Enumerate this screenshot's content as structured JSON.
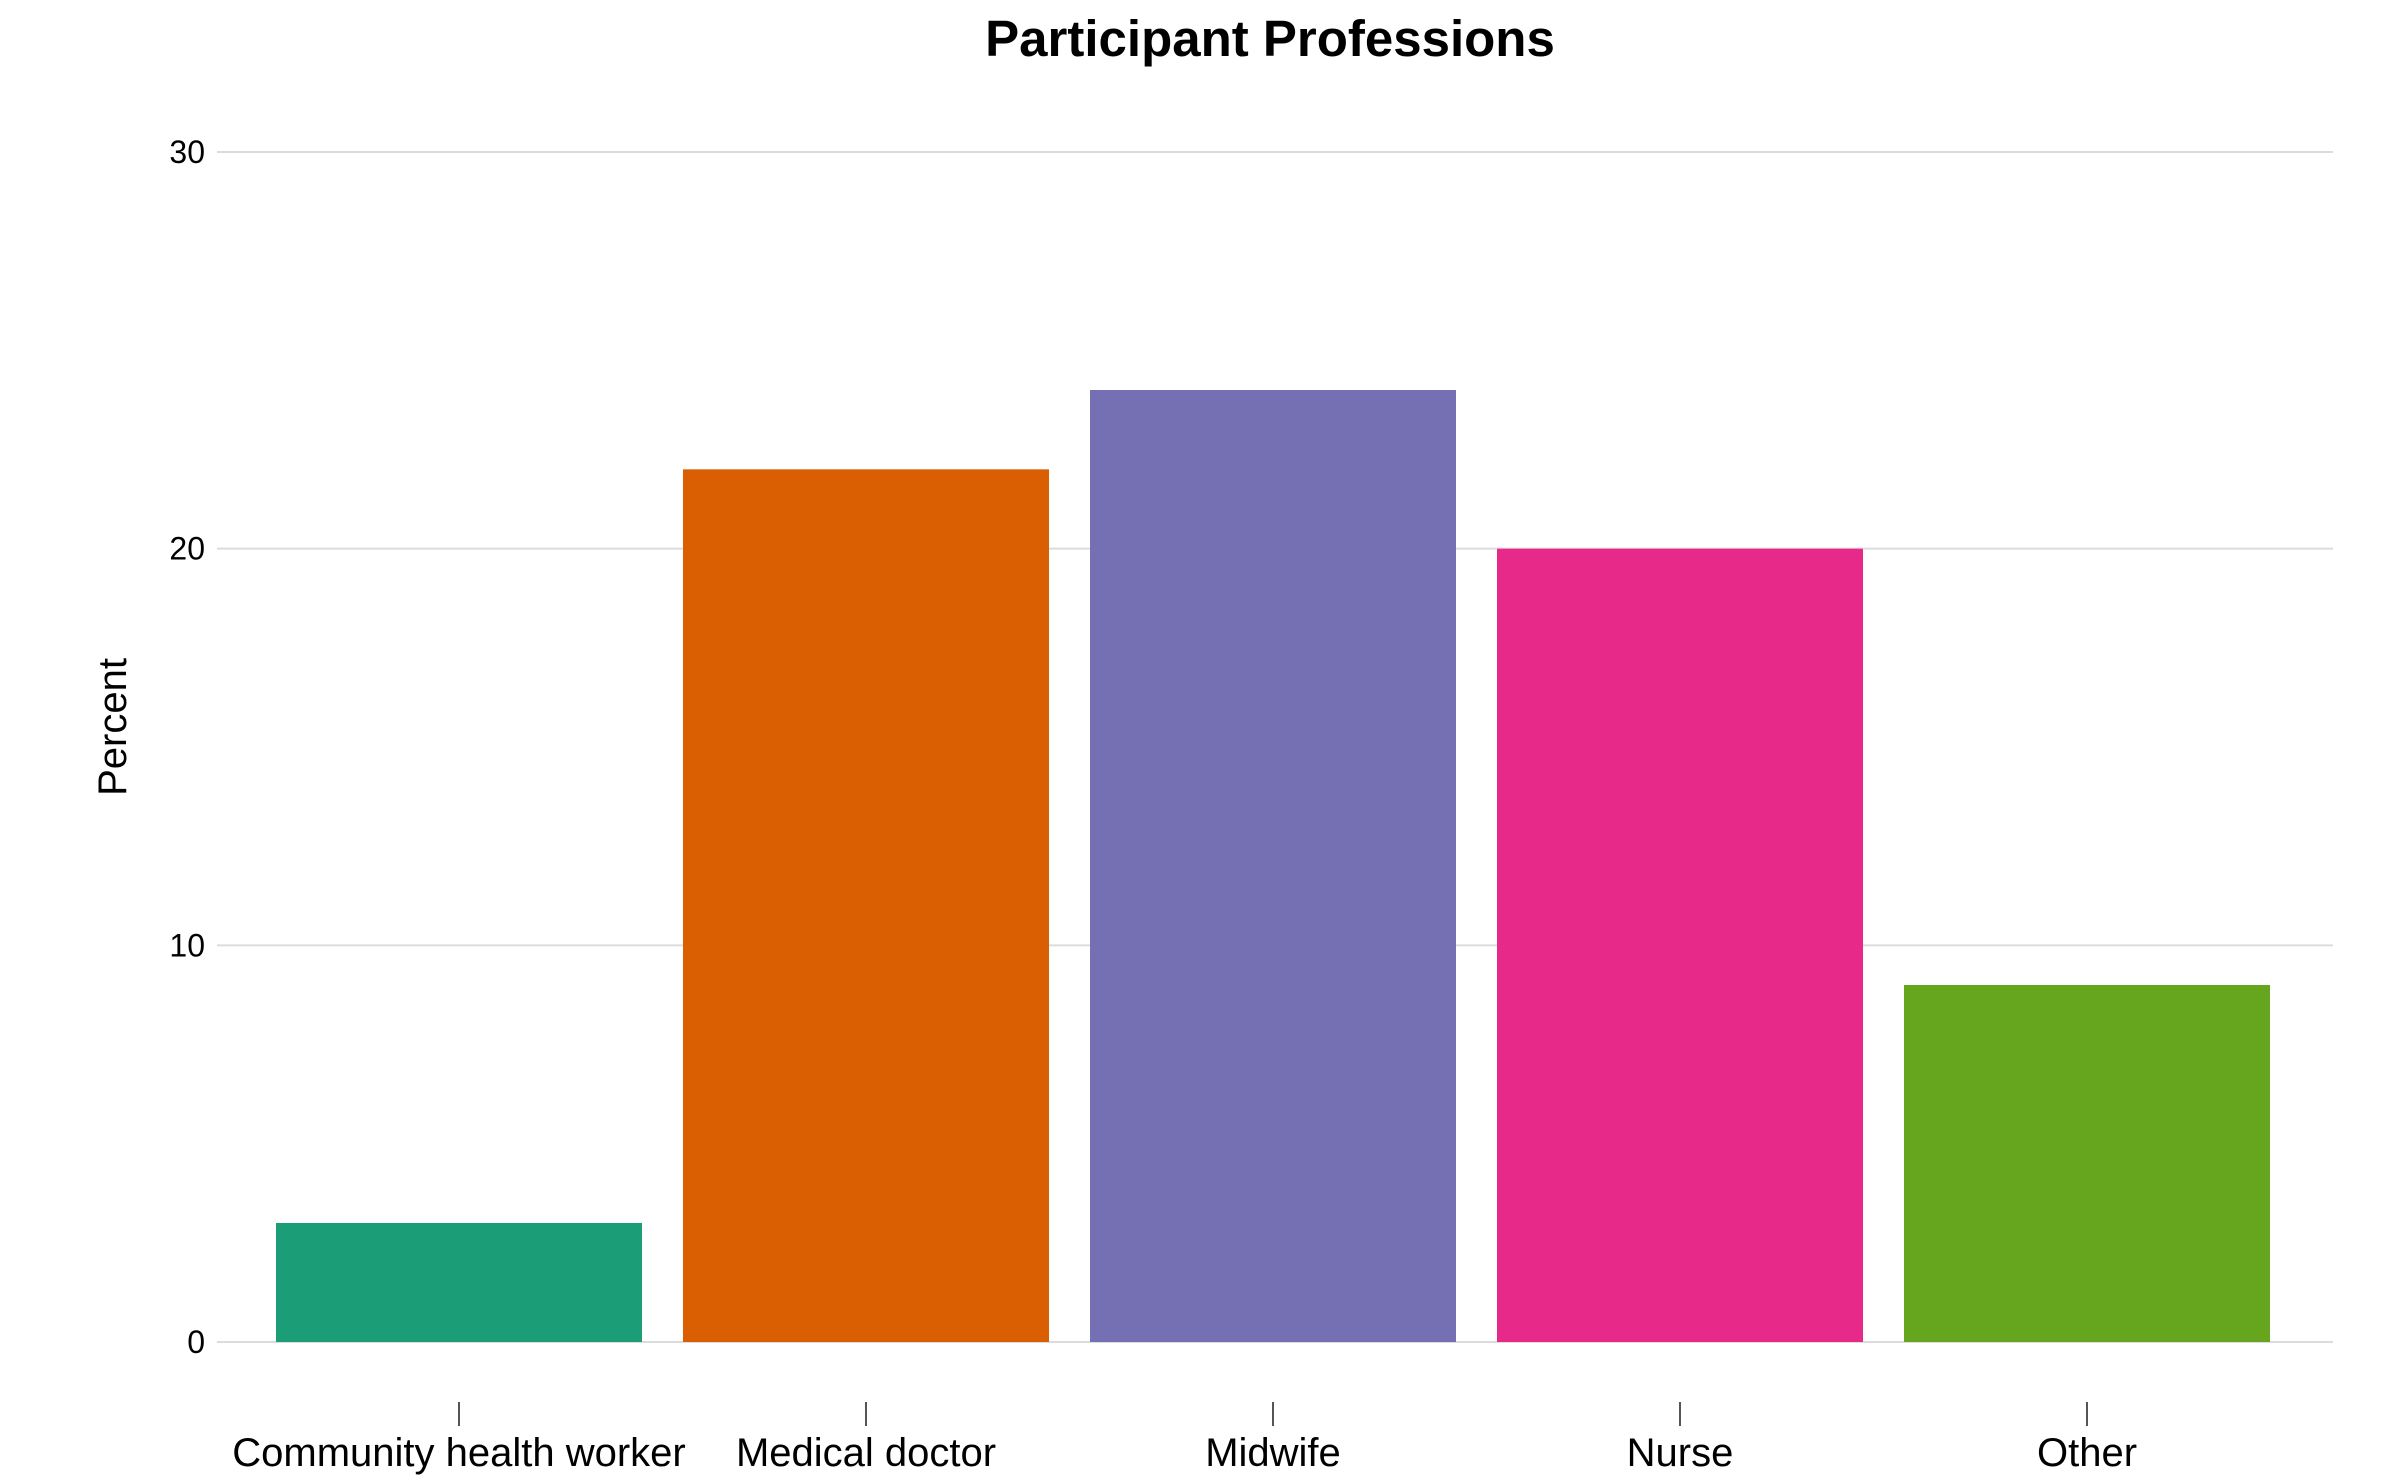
{
  "chart_data": {
    "type": "bar",
    "title": "Participant Professions",
    "xlabel": "",
    "ylabel": "Percent",
    "categories": [
      "Community health worker",
      "Medical doctor",
      "Midwife",
      "Nurse",
      "Other"
    ],
    "values": [
      3,
      22,
      24,
      20,
      9
    ],
    "colors": [
      "#1b9e77",
      "#d95f02",
      "#7570b3",
      "#e7298a",
      "#66a61e"
    ],
    "ylim": [
      0,
      30
    ],
    "yticks": [
      0,
      10,
      20,
      30
    ],
    "ytick_labels": [
      "0",
      "10",
      "20",
      "30"
    ],
    "grid": true,
    "legend": "none"
  }
}
